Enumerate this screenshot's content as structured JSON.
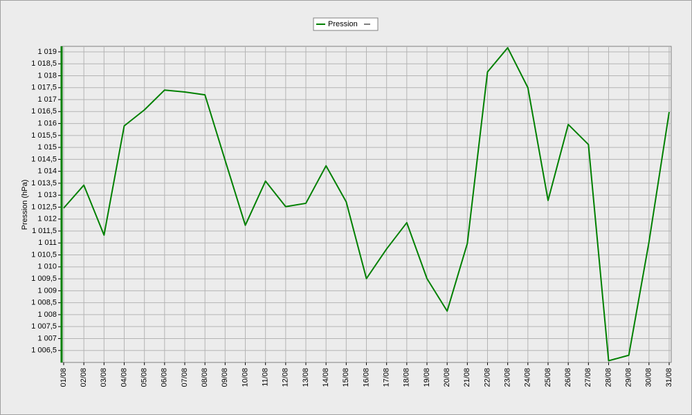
{
  "chart_data": {
    "type": "line",
    "y_label": "Pression (hPa)",
    "categories": [
      "01/08",
      "02/08",
      "03/08",
      "04/08",
      "05/08",
      "06/08",
      "07/08",
      "08/08",
      "09/08",
      "10/08",
      "11/08",
      "12/08",
      "13/08",
      "14/08",
      "15/08",
      "16/08",
      "17/08",
      "18/08",
      "19/08",
      "20/08",
      "21/08",
      "22/08",
      "23/08",
      "24/08",
      "25/08",
      "26/08",
      "27/08",
      "28/08",
      "29/08",
      "30/08",
      "31/08"
    ],
    "series": [
      {
        "name": "Pression",
        "color": "#008000",
        "values": [
          1012.46,
          1013.42,
          1011.33,
          1015.9,
          1016.57,
          1017.4,
          1017.32,
          1017.2,
          1014.46,
          1011.74,
          1013.59,
          1012.52,
          1012.66,
          1014.23,
          1012.72,
          1009.51,
          1010.75,
          1011.85,
          1009.51,
          1008.15,
          1010.98,
          1018.16,
          1019.17,
          1017.5,
          1012.78,
          1015.96,
          1015.12,
          1006.07,
          1006.3,
          1011.04,
          1016.48
        ]
      }
    ],
    "ylim": [
      1006.0,
      1019.23
    ],
    "yticks": [
      {
        "value": 1006.5,
        "label": "1 006,5"
      },
      {
        "value": 1007,
        "label": "1 007"
      },
      {
        "value": 1007.5,
        "label": "1 007,5"
      },
      {
        "value": 1008,
        "label": "1 008"
      },
      {
        "value": 1008.5,
        "label": "1 008,5"
      },
      {
        "value": 1009,
        "label": "1 009"
      },
      {
        "value": 1009.5,
        "label": "1 009,5"
      },
      {
        "value": 1010,
        "label": "1 010"
      },
      {
        "value": 1010.5,
        "label": "1 010,5"
      },
      {
        "value": 1011,
        "label": "1 011"
      },
      {
        "value": 1011.5,
        "label": "1 011,5"
      },
      {
        "value": 1012,
        "label": "1 012"
      },
      {
        "value": 1012.5,
        "label": "1 012,5"
      },
      {
        "value": 1013,
        "label": "1 013"
      },
      {
        "value": 1013.5,
        "label": "1 013,5"
      },
      {
        "value": 1014,
        "label": "1 014"
      },
      {
        "value": 1014.5,
        "label": "1 014,5"
      },
      {
        "value": 1015,
        "label": "1 015"
      },
      {
        "value": 1015.5,
        "label": "1 015,5"
      },
      {
        "value": 1016,
        "label": "1 016"
      },
      {
        "value": 1016.5,
        "label": "1 016,5"
      },
      {
        "value": 1017,
        "label": "1 017"
      },
      {
        "value": 1017.5,
        "label": "1 017,5"
      },
      {
        "value": 1018,
        "label": "1 018"
      },
      {
        "value": 1018.5,
        "label": "1 018,5"
      },
      {
        "value": 1019,
        "label": "1 019"
      }
    ],
    "grid": true
  }
}
